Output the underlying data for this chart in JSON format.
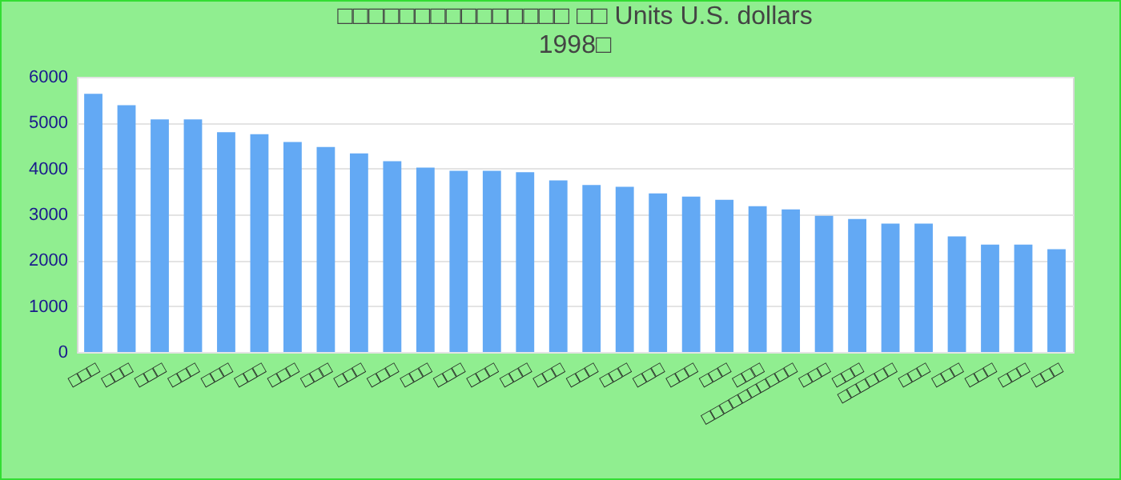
{
  "chart_data": {
    "type": "bar",
    "title": "□□□□□□□□□□□□□□□ □□ Units U.S. dollars",
    "subtitle": "1998□",
    "categories": [
      "□□□",
      "□□□",
      "□□□",
      "□□□",
      "□□□",
      "□□□",
      "□□□",
      "□□□",
      "□□□",
      "□□□",
      "□□□",
      "□□□",
      "□□□",
      "□□□",
      "□□□",
      "□□□",
      "□□□",
      "□□□",
      "□□□",
      "□□□",
      "□□□",
      "□□□□□□□□□□",
      "□□□",
      "□□□",
      "□□□□□□",
      "□□□",
      "□□□",
      "□□□",
      "□□□",
      "□□□"
    ],
    "values": [
      5630,
      5380,
      5070,
      5070,
      4790,
      4750,
      4580,
      4470,
      4330,
      4160,
      4020,
      3950,
      3950,
      3920,
      3740,
      3640,
      3600,
      3460,
      3390,
      3320,
      3180,
      3110,
      2970,
      2900,
      2800,
      2800,
      2520,
      2340,
      2340,
      2240
    ],
    "color": "#63a9f4",
    "ylim": [
      0,
      6000
    ],
    "yticks": [
      0,
      1000,
      2000,
      3000,
      4000,
      5000,
      6000
    ],
    "grid": "y"
  }
}
